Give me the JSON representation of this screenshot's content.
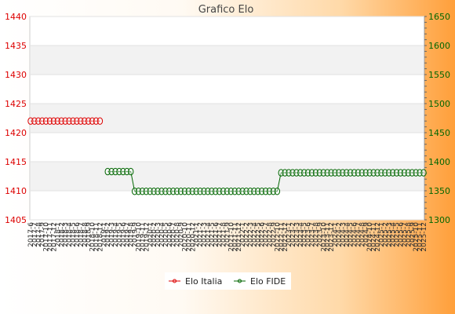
{
  "chart_data": {
    "type": "line",
    "title": "Grafico Elo",
    "x_ticks": [
      "2017-6",
      "2017-7",
      "2017-8",
      "2017-9",
      "2017-10",
      "2017-11",
      "2017-12",
      "2018-1",
      "2018-2",
      "2018-3",
      "2018-4",
      "2018-5",
      "2018-6",
      "2018-7",
      "2018-8",
      "2018-9",
      "2018-10",
      "2018-11",
      "2018-12",
      "2019-1",
      "2019-2",
      "2019-3",
      "2019-4",
      "2019-5",
      "2019-6",
      "2019-7",
      "2019-8",
      "2019-9",
      "2019-10",
      "2019-11",
      "2019-12",
      "2020-1",
      "2020-2",
      "2020-3",
      "2020-4",
      "2020-5",
      "2020-6",
      "2020-7",
      "2020-8",
      "2020-9",
      "2020-10",
      "2020-11",
      "2020-12",
      "2021-1",
      "2021-2",
      "2021-3",
      "2021-4",
      "2021-5",
      "2021-6",
      "2021-7",
      "2021-8",
      "2021-9",
      "2021-10",
      "2021-11",
      "2021-12",
      "2022-1",
      "2022-2",
      "2022-3",
      "2022-4",
      "2022-5",
      "2022-6",
      "2022-7",
      "2022-8",
      "2022-9",
      "2022-10",
      "2022-11",
      "2022-12",
      "2023-1",
      "2023-2",
      "2023-3",
      "2023-4",
      "2023-5",
      "2023-6",
      "2023-7",
      "2023-8",
      "2023-9",
      "2023-10",
      "2023-11",
      "2023-12",
      "2024-1",
      "2024-2",
      "2024-3",
      "2024-4",
      "2024-5",
      "2024-6",
      "2024-7",
      "2024-8",
      "2024-9",
      "2024-10",
      "2024-11",
      "2024-12",
      "2025-1",
      "2025-2",
      "2025-3",
      "2025-4",
      "2025-5",
      "2025-6",
      "2025-7",
      "2025-8",
      "2025-9",
      "2025-10",
      "2025-11",
      "2025-12"
    ],
    "y_left": {
      "min": 1405,
      "max": 1440,
      "ticks": [
        1405,
        1410,
        1415,
        1420,
        1425,
        1430,
        1435,
        1440
      ],
      "color": "#dd0000"
    },
    "y_right": {
      "min": 1300,
      "max": 1650,
      "ticks": [
        1300,
        1350,
        1400,
        1450,
        1500,
        1550,
        1600,
        1650
      ],
      "color": "#006600"
    },
    "legend_position": "bottom",
    "grid": true,
    "series": [
      {
        "name": "Elo Italia",
        "axis": "left",
        "color": "#dd0000",
        "segments": [
          {
            "x": [
              "2017-6",
              "2017-7",
              "2017-8",
              "2017-9",
              "2017-10",
              "2017-11",
              "2017-12",
              "2018-1",
              "2018-2",
              "2018-3",
              "2018-4",
              "2018-5",
              "2018-6",
              "2018-7",
              "2018-8",
              "2018-9",
              "2018-10",
              "2018-11",
              "2018-12"
            ],
            "y": [
              1422,
              1422,
              1422,
              1422,
              1422,
              1422,
              1422,
              1422,
              1422,
              1422,
              1422,
              1422,
              1422,
              1422,
              1422,
              1422,
              1422,
              1422,
              1422
            ]
          }
        ]
      },
      {
        "name": "Elo FIDE",
        "axis": "right",
        "color": "#006600",
        "segments": [
          {
            "x": [
              "2019-2",
              "2019-3",
              "2019-4",
              "2019-5",
              "2019-6",
              "2019-7",
              "2019-8",
              "2019-9",
              "2019-10",
              "2019-11",
              "2019-12",
              "2020-1",
              "2020-2",
              "2020-3",
              "2020-4",
              "2020-5",
              "2020-6",
              "2020-7",
              "2020-8",
              "2020-9",
              "2020-10",
              "2020-11",
              "2020-12",
              "2021-1",
              "2021-2",
              "2021-3",
              "2021-4",
              "2021-5",
              "2021-6",
              "2021-7",
              "2021-8",
              "2021-9",
              "2021-10",
              "2021-11",
              "2021-12",
              "2022-1",
              "2022-2",
              "2022-3",
              "2022-4",
              "2022-5",
              "2022-6",
              "2022-7",
              "2022-8",
              "2022-9",
              "2022-10",
              "2022-11",
              "2022-12",
              "2023-1",
              "2023-2",
              "2023-3",
              "2023-4",
              "2023-5",
              "2023-6",
              "2023-7",
              "2023-8",
              "2023-9",
              "2023-10",
              "2023-11",
              "2023-12",
              "2024-1",
              "2024-2",
              "2024-3",
              "2024-4",
              "2024-5",
              "2024-6",
              "2024-7",
              "2024-8",
              "2024-9",
              "2024-10",
              "2024-11",
              "2024-12",
              "2025-1",
              "2025-2",
              "2025-3",
              "2025-4",
              "2025-5",
              "2025-6",
              "2025-7",
              "2025-8",
              "2025-9",
              "2025-10",
              "2025-11",
              "2025-12"
            ],
            "y": [
              1383,
              1383,
              1383,
              1383,
              1383,
              1383,
              1383,
              1349,
              1349,
              1349,
              1349,
              1349,
              1349,
              1349,
              1349,
              1349,
              1349,
              1349,
              1349,
              1349,
              1349,
              1349,
              1349,
              1349,
              1349,
              1349,
              1349,
              1349,
              1349,
              1349,
              1349,
              1349,
              1349,
              1349,
              1349,
              1349,
              1349,
              1349,
              1349,
              1349,
              1349,
              1349,
              1349,
              1349,
              1349,
              1381,
              1381,
              1381,
              1381,
              1381,
              1381,
              1381,
              1381,
              1381,
              1381,
              1381,
              1381,
              1381,
              1381,
              1381,
              1381,
              1381,
              1381,
              1381,
              1381,
              1381,
              1381,
              1381,
              1381,
              1381,
              1381,
              1381,
              1381,
              1381,
              1381,
              1381,
              1381,
              1381,
              1381,
              1381,
              1381,
              1381,
              1381
            ]
          }
        ]
      }
    ]
  }
}
